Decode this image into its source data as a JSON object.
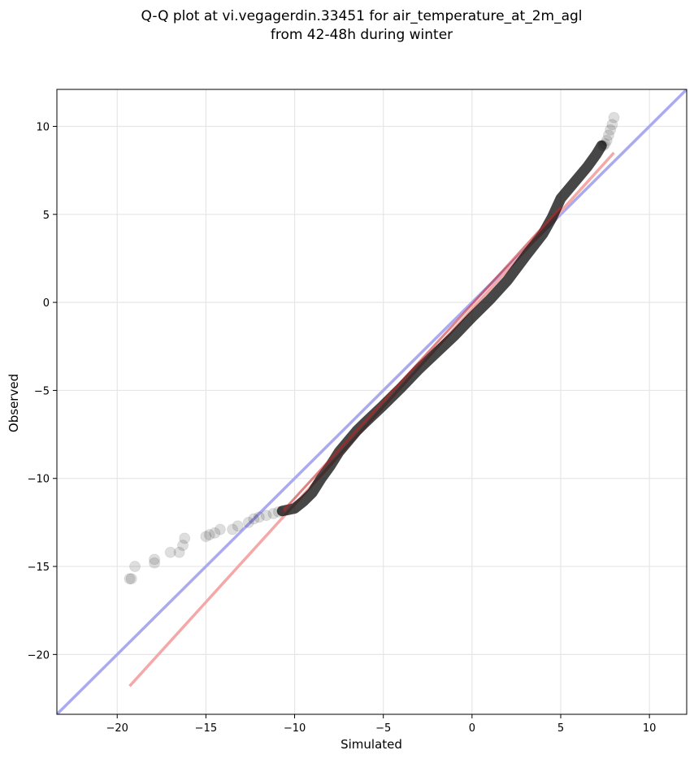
{
  "chart_data": {
    "type": "scatter",
    "title_lines": [
      "Q-Q plot at vi.vegagerdin.33451 for air_temperature_at_2m_agl",
      "from 42-48h during winter"
    ],
    "xlabel": "Simulated",
    "ylabel": "Observed",
    "xlim": [
      -23.4,
      12.1
    ],
    "ylim": [
      -23.4,
      12.1
    ],
    "xticks": [
      -20,
      -15,
      -10,
      -5,
      0,
      5,
      10
    ],
    "yticks": [
      -20,
      -15,
      -10,
      -5,
      0,
      5,
      10
    ],
    "grid": true,
    "quantile_path": [
      [
        -10.7,
        -11.85
      ],
      [
        -10,
        -11.7
      ],
      [
        -9.5,
        -11.3
      ],
      [
        -9,
        -10.8
      ],
      [
        -8.5,
        -10.0
      ],
      [
        -8.0,
        -9.3
      ],
      [
        -7.5,
        -8.5
      ],
      [
        -7.0,
        -7.9
      ],
      [
        -6.5,
        -7.3
      ],
      [
        -6.0,
        -6.8
      ],
      [
        -5.0,
        -5.85
      ],
      [
        -4.0,
        -4.85
      ],
      [
        -3.0,
        -3.8
      ],
      [
        -2.0,
        -2.85
      ],
      [
        -1.0,
        -1.9
      ],
      [
        0.0,
        -0.85
      ],
      [
        1.0,
        0.15
      ],
      [
        2.0,
        1.25
      ],
      [
        3.0,
        2.6
      ],
      [
        4.0,
        3.9
      ],
      [
        4.5,
        4.8
      ],
      [
        5.0,
        5.9
      ],
      [
        5.5,
        6.5
      ],
      [
        6.0,
        7.1
      ],
      [
        6.5,
        7.7
      ],
      [
        7.0,
        8.4
      ],
      [
        7.3,
        8.9
      ]
    ],
    "tail_points": [
      [
        -19.3,
        -15.7
      ],
      [
        -19.2,
        -15.7
      ],
      [
        -19.0,
        -15.0
      ],
      [
        -17.9,
        -14.8
      ],
      [
        -17.9,
        -14.6
      ],
      [
        -17.0,
        -14.2
      ],
      [
        -16.5,
        -14.2
      ],
      [
        -16.3,
        -13.8
      ],
      [
        -16.2,
        -13.4
      ],
      [
        -15.0,
        -13.3
      ],
      [
        -14.8,
        -13.2
      ],
      [
        -14.5,
        -13.1
      ],
      [
        -14.2,
        -12.9
      ],
      [
        -13.5,
        -12.9
      ],
      [
        -13.2,
        -12.7
      ],
      [
        -12.6,
        -12.5
      ],
      [
        -12.3,
        -12.3
      ],
      [
        -12.0,
        -12.2
      ],
      [
        -11.6,
        -12.1
      ],
      [
        -11.2,
        -12.0
      ],
      [
        -10.9,
        -11.9
      ],
      [
        7.4,
        8.9
      ],
      [
        7.5,
        9.0
      ],
      [
        7.6,
        9.2
      ],
      [
        7.7,
        9.5
      ],
      [
        7.8,
        9.8
      ],
      [
        7.9,
        10.1
      ],
      [
        8.0,
        10.5
      ]
    ],
    "reference_line": {
      "x": [
        -23.4,
        12.1
      ],
      "y": [
        -23.4,
        12.1
      ],
      "color": "#aaaaf0"
    },
    "fit_line": {
      "x": [
        -19.3,
        8.0
      ],
      "y": [
        -21.8,
        8.5
      ],
      "color": "#f5a8a8"
    },
    "central_fit_line": {
      "x": [
        -10.7,
        5.0
      ],
      "y": [
        -11.9,
        5.4
      ],
      "color": "#c81e1e"
    },
    "point_color": "#000000"
  }
}
